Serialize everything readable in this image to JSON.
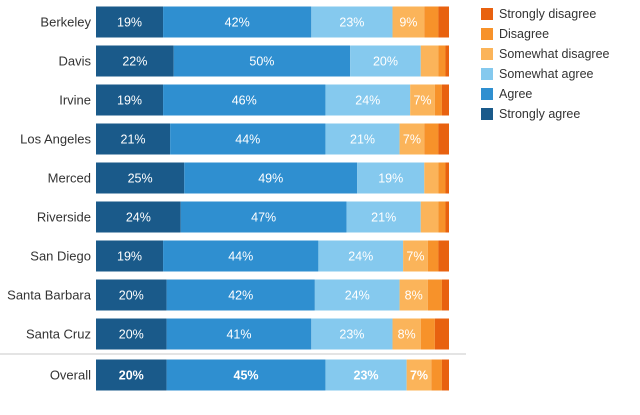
{
  "chart_data": {
    "type": "bar",
    "orientation": "horizontal",
    "stacked": "100%",
    "categories": [
      "Berkeley",
      "Davis",
      "Irvine",
      "Los Angeles",
      "Merced",
      "Riverside",
      "San Diego",
      "Santa Barbara",
      "Santa Cruz",
      "Overall"
    ],
    "series": [
      {
        "name": "Strongly agree",
        "color": "#1a5a8a",
        "values": [
          19,
          22,
          19,
          21,
          25,
          24,
          19,
          20,
          20,
          20
        ],
        "labels": [
          "19%",
          "22%",
          "19%",
          "21%",
          "25%",
          "24%",
          "19%",
          "20%",
          "20%",
          "20%"
        ]
      },
      {
        "name": "Agree",
        "color": "#2f8fd0",
        "values": [
          42,
          50,
          46,
          44,
          49,
          47,
          44,
          42,
          41,
          45
        ],
        "labels": [
          "42%",
          "50%",
          "46%",
          "44%",
          "49%",
          "47%",
          "44%",
          "42%",
          "41%",
          "45%"
        ]
      },
      {
        "name": "Somewhat agree",
        "color": "#85c9ee",
        "values": [
          23,
          20,
          24,
          21,
          19,
          21,
          24,
          24,
          23,
          23
        ],
        "labels": [
          "23%",
          "20%",
          "24%",
          "21%",
          "19%",
          "21%",
          "24%",
          "24%",
          "23%",
          "23%"
        ]
      },
      {
        "name": "Somewhat disagree",
        "color": "#fbb45a",
        "values": [
          9,
          5,
          7,
          7,
          4,
          5,
          7,
          8,
          8,
          7
        ],
        "labels": [
          "9%",
          "",
          "7%",
          "7%",
          "",
          "",
          "7%",
          "8%",
          "8%",
          "7%"
        ]
      },
      {
        "name": "Disagree",
        "color": "#f7922a",
        "values": [
          4,
          2,
          2,
          4,
          2,
          2,
          3,
          4,
          4,
          3
        ],
        "labels": [
          "",
          "",
          "",
          "",
          "",
          "",
          "",
          "",
          "",
          ""
        ]
      },
      {
        "name": "Strongly disagree",
        "color": "#e8610f",
        "values": [
          3,
          1,
          2,
          3,
          1,
          1,
          3,
          2,
          4,
          2
        ],
        "labels": [
          "",
          "",
          "",
          "",
          "",
          "",
          "",
          "",
          "",
          ""
        ]
      }
    ],
    "legend_order": [
      "Strongly disagree",
      "Disagree",
      "Somewhat disagree",
      "Somewhat agree",
      "Agree",
      "Strongly agree"
    ],
    "legend_position": "top-right",
    "title": "",
    "xlabel": "",
    "ylabel": "",
    "xlim": [
      0,
      100
    ],
    "grid": false
  }
}
